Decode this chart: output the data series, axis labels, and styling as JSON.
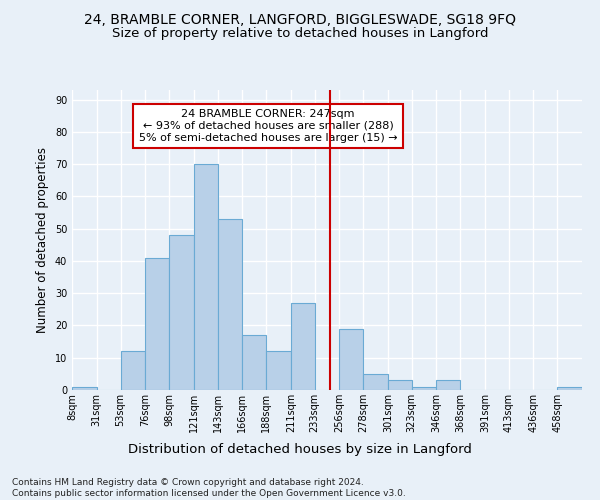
{
  "title": "24, BRAMBLE CORNER, LANGFORD, BIGGLESWADE, SG18 9FQ",
  "subtitle": "Size of property relative to detached houses in Langford",
  "xlabel": "Distribution of detached houses by size in Langford",
  "ylabel": "Number of detached properties",
  "bin_labels": [
    "8sqm",
    "31sqm",
    "53sqm",
    "76sqm",
    "98sqm",
    "121sqm",
    "143sqm",
    "166sqm",
    "188sqm",
    "211sqm",
    "233sqm",
    "256sqm",
    "278sqm",
    "301sqm",
    "323sqm",
    "346sqm",
    "368sqm",
    "391sqm",
    "413sqm",
    "436sqm",
    "458sqm"
  ],
  "bin_edges": [
    8,
    31,
    53,
    76,
    98,
    121,
    143,
    166,
    188,
    211,
    233,
    256,
    278,
    301,
    323,
    346,
    368,
    391,
    413,
    436,
    458,
    481
  ],
  "bar_heights": [
    1,
    0,
    12,
    41,
    48,
    70,
    53,
    17,
    12,
    27,
    0,
    19,
    5,
    3,
    1,
    3,
    0,
    0,
    0,
    0,
    1
  ],
  "bar_color": "#b8d0e8",
  "bar_edge_color": "#6aaad4",
  "vline_x": 247,
  "vline_color": "#cc0000",
  "annotation_text": "24 BRAMBLE CORNER: 247sqm\n← 93% of detached houses are smaller (288)\n5% of semi-detached houses are larger (15) →",
  "annotation_box_color": "#ffffff",
  "annotation_box_edge": "#cc0000",
  "ylim": [
    0,
    93
  ],
  "yticks": [
    0,
    10,
    20,
    30,
    40,
    50,
    60,
    70,
    80,
    90
  ],
  "bg_color": "#e8f0f8",
  "grid_color": "#ffffff",
  "footer": "Contains HM Land Registry data © Crown copyright and database right 2024.\nContains public sector information licensed under the Open Government Licence v3.0.",
  "title_fontsize": 10,
  "subtitle_fontsize": 9.5,
  "xlabel_fontsize": 9.5,
  "ylabel_fontsize": 8.5,
  "tick_fontsize": 7,
  "annotation_fontsize": 8,
  "footer_fontsize": 6.5
}
